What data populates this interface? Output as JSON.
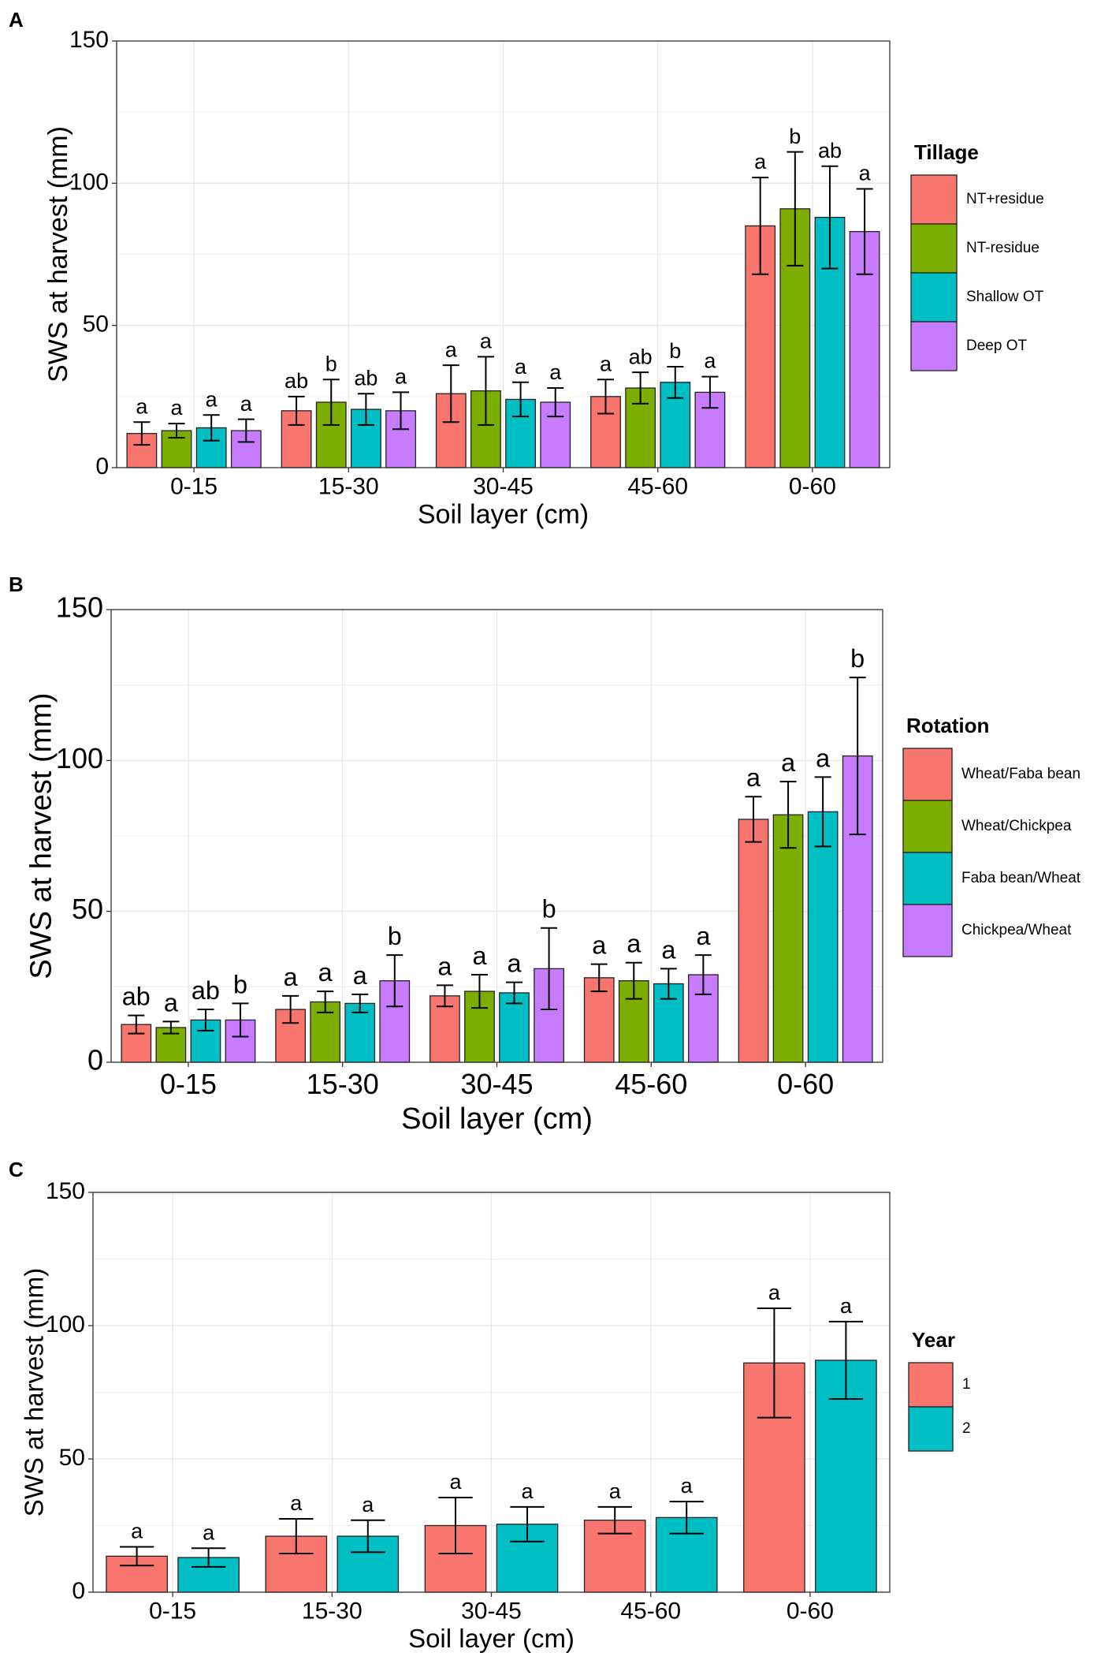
{
  "chart_data": [
    {
      "type": "bar",
      "panel": "A",
      "x_label": "Soil layer (cm)",
      "y_label": "SWS at harvest (mm)",
      "legend_title": "Tillage",
      "categories": [
        "0-15",
        "15-30",
        "30-45",
        "45-60",
        "0-60"
      ],
      "ylim": [
        0,
        150
      ],
      "yticks": [
        0,
        50,
        100,
        150
      ],
      "grid": true,
      "series": [
        {
          "name": "NT+residue",
          "color": "#f8766d",
          "values": [
            12,
            20,
            26,
            25,
            85
          ],
          "errors": [
            4,
            5,
            10,
            6,
            17
          ],
          "letters": [
            "a",
            "ab",
            "a",
            "a",
            "a"
          ]
        },
        {
          "name": "NT-residue",
          "color": "#7cae00",
          "values": [
            13,
            23,
            27,
            28,
            91
          ],
          "errors": [
            2.5,
            8,
            12,
            5.5,
            20
          ],
          "letters": [
            "a",
            "b",
            "a",
            "ab",
            "b"
          ]
        },
        {
          "name": "Shallow OT",
          "color": "#00bfc4",
          "values": [
            14,
            20.5,
            24,
            30,
            88
          ],
          "errors": [
            4.5,
            5.5,
            6,
            5.5,
            18
          ],
          "letters": [
            "a",
            "ab",
            "a",
            "b",
            "ab"
          ]
        },
        {
          "name": "Deep OT",
          "color": "#c77cff",
          "values": [
            13,
            20,
            23,
            26.5,
            83
          ],
          "errors": [
            4,
            6.5,
            5,
            5.5,
            15
          ],
          "letters": [
            "a",
            "a",
            "a",
            "a",
            "a"
          ]
        }
      ]
    },
    {
      "type": "bar",
      "panel": "B",
      "x_label": "Soil layer (cm)",
      "y_label": "SWS at harvest (mm)",
      "legend_title": "Rotation",
      "categories": [
        "0-15",
        "15-30",
        "30-45",
        "45-60",
        "0-60"
      ],
      "ylim": [
        0,
        150
      ],
      "yticks": [
        0,
        50,
        100,
        150
      ],
      "grid": true,
      "series": [
        {
          "name": "Wheat/Faba bean",
          "color": "#f8766d",
          "values": [
            12.5,
            17.5,
            22,
            28,
            80.5
          ],
          "errors": [
            3,
            4.5,
            3.5,
            4.5,
            7.5
          ],
          "letters": [
            "ab",
            "a",
            "a",
            "a",
            "a"
          ]
        },
        {
          "name": "Wheat/Chickpea",
          "color": "#7cae00",
          "values": [
            11.5,
            20,
            23.5,
            27,
            82
          ],
          "errors": [
            2,
            3.5,
            5.5,
            6,
            11
          ],
          "letters": [
            "a",
            "a",
            "a",
            "a",
            "a"
          ]
        },
        {
          "name": "Faba bean/Wheat",
          "color": "#00bfc4",
          "values": [
            14,
            19.5,
            23,
            26,
            83
          ],
          "errors": [
            3.5,
            3,
            3.5,
            5,
            11.5
          ],
          "letters": [
            "ab",
            "a",
            "a",
            "a",
            "a"
          ]
        },
        {
          "name": "Chickpea/Wheat",
          "color": "#c77cff",
          "values": [
            14,
            27,
            31,
            29,
            101.5
          ],
          "errors": [
            5.5,
            8.5,
            13.5,
            6.5,
            26
          ],
          "letters": [
            "b",
            "b",
            "b",
            "a",
            "b"
          ]
        }
      ]
    },
    {
      "type": "bar",
      "panel": "C",
      "x_label": "Soil layer (cm)",
      "y_label": "SWS at harvest (mm)",
      "legend_title": "Year",
      "categories": [
        "0-15",
        "15-30",
        "30-45",
        "45-60",
        "0-60"
      ],
      "ylim": [
        0,
        150
      ],
      "yticks": [
        0,
        50,
        100,
        150
      ],
      "grid": true,
      "series": [
        {
          "name": "1",
          "color": "#f8766d",
          "values": [
            13.5,
            21,
            25,
            27,
            86
          ],
          "errors": [
            3.5,
            6.5,
            10.5,
            5,
            20.5
          ],
          "letters": [
            "a",
            "a",
            "a",
            "a",
            "a"
          ]
        },
        {
          "name": "2",
          "color": "#00bfc4",
          "values": [
            13,
            21,
            25.5,
            28,
            87
          ],
          "errors": [
            3.5,
            6,
            6.5,
            6,
            14.5
          ],
          "letters": [
            "a",
            "a",
            "a",
            "a",
            "a"
          ]
        }
      ]
    }
  ]
}
